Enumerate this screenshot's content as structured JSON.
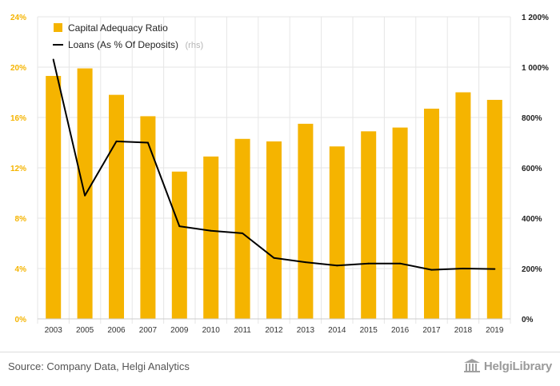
{
  "chart_data": {
    "type": "bar+line",
    "categories": [
      "2003",
      "2005",
      "2006",
      "2007",
      "2009",
      "2010",
      "2011",
      "2012",
      "2013",
      "2014",
      "2015",
      "2016",
      "2017",
      "2018",
      "2019"
    ],
    "series": [
      {
        "name": "Capital Adequacy Ratio",
        "type": "bar",
        "axis": "left",
        "color": "#f5b400",
        "values": [
          19.3,
          19.9,
          17.8,
          16.1,
          11.7,
          12.9,
          14.3,
          14.1,
          15.5,
          13.7,
          14.9,
          15.2,
          16.7,
          18.0,
          17.4
        ]
      },
      {
        "name": "Loans (As % Of Deposits)",
        "suffix": "(rhs)",
        "type": "line",
        "axis": "right",
        "color": "#000000",
        "values": [
          1030,
          490,
          705,
          700,
          368,
          350,
          340,
          242,
          225,
          212,
          220,
          220,
          195,
          200,
          198
        ]
      }
    ],
    "left_axis": {
      "min": 0,
      "max": 24,
      "ticks": [
        "0%",
        "4%",
        "8%",
        "12%",
        "16%",
        "20%",
        "24%"
      ]
    },
    "right_axis": {
      "min": 0,
      "max": 1200,
      "ticks": [
        "0%",
        "200%",
        "400%",
        "600%",
        "800%",
        "1 000%",
        "1 200%"
      ]
    },
    "legend_position": "top-left",
    "grid": true
  },
  "footer": {
    "source": "Source: Company Data, Helgi Analytics",
    "brand": "HelgiLibrary"
  },
  "colors": {
    "bar": "#f5b400",
    "line": "#000000",
    "grid": "#e6e6e6"
  }
}
